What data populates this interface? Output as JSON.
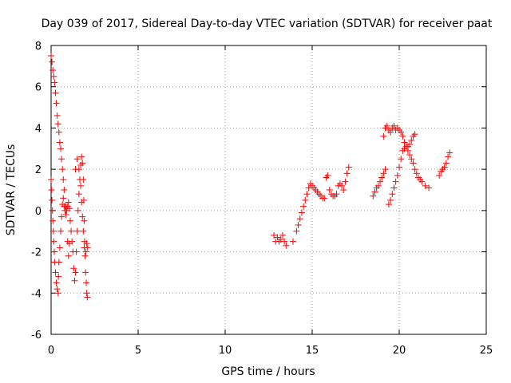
{
  "chart_data": {
    "type": "scatter",
    "title": "Day 039 of 2017, Sidereal Day-to-day VTEC variation (SDTVAR) for receiver paat",
    "xlabel": "GPS time / hours",
    "ylabel": "SDTVAR / TECUs",
    "xlim": [
      0,
      25
    ],
    "ylim": [
      -6,
      8
    ],
    "xticks": [
      0,
      5,
      10,
      15,
      20,
      25
    ],
    "yticks": [
      -6,
      -4,
      -2,
      0,
      2,
      4,
      6,
      8
    ],
    "xtick_labels": [
      "0",
      "5",
      "10",
      "15",
      "20",
      "25"
    ],
    "ytick_labels": [
      "-6",
      "-4",
      "-2",
      "0",
      "2",
      "4",
      "6",
      "8"
    ],
    "grid": true,
    "marker": "+",
    "color": "#ff0000",
    "series": [
      {
        "name": "SDTVAR",
        "points": [
          [
            0.0,
            7.5
          ],
          [
            0.05,
            7.2
          ],
          [
            0.1,
            6.8
          ],
          [
            0.15,
            6.5
          ],
          [
            0.2,
            6.2
          ],
          [
            0.25,
            5.7
          ],
          [
            0.3,
            5.2
          ],
          [
            0.35,
            4.6
          ],
          [
            0.4,
            4.2
          ],
          [
            0.45,
            3.8
          ],
          [
            0.5,
            3.3
          ],
          [
            0.55,
            3.0
          ],
          [
            0.6,
            2.5
          ],
          [
            0.65,
            2.0
          ],
          [
            0.7,
            1.5
          ],
          [
            0.75,
            1.0
          ],
          [
            0.0,
            1.5
          ],
          [
            0.02,
            1.0
          ],
          [
            0.05,
            0.5
          ],
          [
            0.08,
            0.0
          ],
          [
            0.1,
            -0.5
          ],
          [
            0.13,
            -1.0
          ],
          [
            0.15,
            -1.5
          ],
          [
            0.18,
            -2.0
          ],
          [
            0.2,
            -2.5
          ],
          [
            0.25,
            -3.0
          ],
          [
            0.3,
            -3.5
          ],
          [
            0.35,
            -3.8
          ],
          [
            0.4,
            -4.0
          ],
          [
            0.42,
            -3.2
          ],
          [
            0.45,
            -2.5
          ],
          [
            0.5,
            -1.8
          ],
          [
            0.55,
            -1.0
          ],
          [
            0.6,
            -0.3
          ],
          [
            0.65,
            0.3
          ],
          [
            0.7,
            0.6
          ],
          [
            0.75,
            0.2
          ],
          [
            0.8,
            0.0
          ],
          [
            0.85,
            -0.2
          ],
          [
            0.9,
            0.0
          ],
          [
            0.95,
            0.2
          ],
          [
            1.0,
            0.4
          ],
          [
            1.05,
            0.1
          ],
          [
            1.1,
            -0.5
          ],
          [
            1.15,
            -1.0
          ],
          [
            1.2,
            -1.5
          ],
          [
            1.25,
            -2.0
          ],
          [
            1.3,
            -2.8
          ],
          [
            1.35,
            -3.4
          ],
          [
            1.4,
            -3.0
          ],
          [
            1.45,
            -2.0
          ],
          [
            1.5,
            -1.0
          ],
          [
            1.55,
            0.0
          ],
          [
            1.6,
            0.8
          ],
          [
            1.65,
            1.5
          ],
          [
            1.7,
            2.2
          ],
          [
            1.75,
            2.6
          ],
          [
            1.8,
            2.3
          ],
          [
            1.85,
            1.5
          ],
          [
            1.88,
            0.5
          ],
          [
            1.9,
            -0.5
          ],
          [
            1.92,
            -1.5
          ],
          [
            1.95,
            -2.2
          ],
          [
            2.0,
            -2.0
          ],
          [
            2.05,
            -1.6
          ],
          [
            2.1,
            -1.8
          ],
          [
            1.98,
            -3.0
          ],
          [
            2.02,
            -3.5
          ],
          [
            2.05,
            -4.0
          ],
          [
            2.08,
            -4.2
          ],
          [
            0.95,
            -1.5
          ],
          [
            1.0,
            -2.2
          ],
          [
            1.05,
            -1.6
          ],
          [
            0.85,
            0.2
          ],
          [
            1.4,
            2.0
          ],
          [
            1.5,
            2.5
          ],
          [
            1.6,
            2.0
          ],
          [
            1.7,
            1.2
          ],
          [
            1.75,
            0.4
          ],
          [
            1.8,
            -0.3
          ],
          [
            1.85,
            -1.0
          ],
          [
            1.9,
            -1.8
          ],
          [
            12.8,
            -1.2
          ],
          [
            12.9,
            -1.5
          ],
          [
            13.0,
            -1.3
          ],
          [
            13.1,
            -1.5
          ],
          [
            13.2,
            -1.4
          ],
          [
            13.3,
            -1.2
          ],
          [
            13.4,
            -1.5
          ],
          [
            13.5,
            -1.7
          ],
          [
            13.9,
            -1.5
          ],
          [
            14.1,
            -1.0
          ],
          [
            14.2,
            -0.7
          ],
          [
            14.3,
            -0.4
          ],
          [
            14.4,
            -0.1
          ],
          [
            14.5,
            0.2
          ],
          [
            14.6,
            0.5
          ],
          [
            14.7,
            0.8
          ],
          [
            14.8,
            1.1
          ],
          [
            14.9,
            1.3
          ],
          [
            15.0,
            1.2
          ],
          [
            15.1,
            1.1
          ],
          [
            15.2,
            1.0
          ],
          [
            15.3,
            0.9
          ],
          [
            15.4,
            0.8
          ],
          [
            15.5,
            0.7
          ],
          [
            15.6,
            0.6
          ],
          [
            15.7,
            0.6
          ],
          [
            15.8,
            1.6
          ],
          [
            15.9,
            1.7
          ],
          [
            16.0,
            1.0
          ],
          [
            16.1,
            0.8
          ],
          [
            16.2,
            0.7
          ],
          [
            16.3,
            0.7
          ],
          [
            16.4,
            0.8
          ],
          [
            16.5,
            1.2
          ],
          [
            16.6,
            1.3
          ],
          [
            16.7,
            1.2
          ],
          [
            16.8,
            1.0
          ],
          [
            16.9,
            1.4
          ],
          [
            17.0,
            1.8
          ],
          [
            17.1,
            2.1
          ],
          [
            18.5,
            0.7
          ],
          [
            18.6,
            0.9
          ],
          [
            18.7,
            1.1
          ],
          [
            18.8,
            1.2
          ],
          [
            18.9,
            1.4
          ],
          [
            19.0,
            1.6
          ],
          [
            19.1,
            1.8
          ],
          [
            19.2,
            2.0
          ],
          [
            19.1,
            3.6
          ],
          [
            19.2,
            4.0
          ],
          [
            19.3,
            4.1
          ],
          [
            19.4,
            3.9
          ],
          [
            19.5,
            3.8
          ],
          [
            19.6,
            4.0
          ],
          [
            19.7,
            4.1
          ],
          [
            19.8,
            3.9
          ],
          [
            19.9,
            4.0
          ],
          [
            20.0,
            3.9
          ],
          [
            20.1,
            3.8
          ],
          [
            20.2,
            3.6
          ],
          [
            20.3,
            3.3
          ],
          [
            20.4,
            3.1
          ],
          [
            20.5,
            2.9
          ],
          [
            20.6,
            2.7
          ],
          [
            20.7,
            2.5
          ],
          [
            20.8,
            2.3
          ],
          [
            20.9,
            2.0
          ],
          [
            21.0,
            1.8
          ],
          [
            21.1,
            1.6
          ],
          [
            21.2,
            1.5
          ],
          [
            21.3,
            1.4
          ],
          [
            21.5,
            1.2
          ],
          [
            21.7,
            1.1
          ],
          [
            19.4,
            0.3
          ],
          [
            19.5,
            0.5
          ],
          [
            19.6,
            0.8
          ],
          [
            19.7,
            1.1
          ],
          [
            19.8,
            1.4
          ],
          [
            19.9,
            1.7
          ],
          [
            20.0,
            2.1
          ],
          [
            20.1,
            2.5
          ],
          [
            20.2,
            2.9
          ],
          [
            20.3,
            3.0
          ],
          [
            20.5,
            3.1
          ],
          [
            20.6,
            3.2
          ],
          [
            20.7,
            3.4
          ],
          [
            20.8,
            3.6
          ],
          [
            20.9,
            3.7
          ],
          [
            22.3,
            1.7
          ],
          [
            22.4,
            1.9
          ],
          [
            22.5,
            2.0
          ],
          [
            22.6,
            2.1
          ],
          [
            22.7,
            2.3
          ],
          [
            22.8,
            2.6
          ],
          [
            22.9,
            2.8
          ]
        ]
      }
    ]
  }
}
